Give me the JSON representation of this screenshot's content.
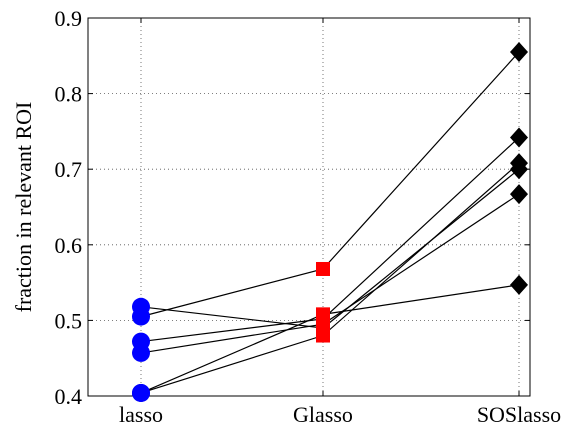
{
  "chart_data": {
    "type": "line",
    "title": "",
    "xlabel": "",
    "ylabel": "fraction in relevant ROI",
    "categories": [
      "lasso",
      "Glasso",
      "SOSlasso"
    ],
    "ylim": [
      0.4,
      0.9
    ],
    "yticks": [
      "0.4",
      "0.5",
      "0.6",
      "0.7",
      "0.8",
      "0.9"
    ],
    "grid": true,
    "legend": "none",
    "colors": {
      "lasso": "#0000ff",
      "Glasso": "#ff0000",
      "SOSlasso": "#000000",
      "line": "#000000"
    },
    "markers": {
      "lasso": "circle",
      "Glasso": "square",
      "SOSlasso": "diamond"
    },
    "series": [
      {
        "values": [
          0.518,
          0.49,
          0.7
        ]
      },
      {
        "values": [
          0.505,
          0.568,
          0.855
        ]
      },
      {
        "values": [
          0.472,
          0.502,
          0.742
        ]
      },
      {
        "values": [
          0.457,
          0.495,
          0.667
        ]
      },
      {
        "values": [
          0.404,
          0.48,
          0.708
        ]
      },
      {
        "values": [
          0.404,
          0.508,
          0.547
        ]
      }
    ]
  }
}
